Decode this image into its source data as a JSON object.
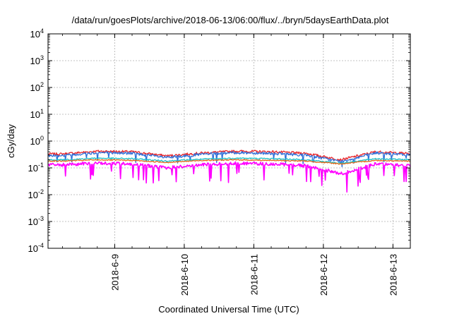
{
  "chart_data": {
    "type": "line",
    "title": "/data/run/goesPlots/archive/2018-06-13/06:00/flux/../bryn/5daysEarthData.plot",
    "xlabel": "Coordinated Universal Time (UTC)",
    "ylabel": "cGy/day",
    "yscale": "log",
    "ylim": [
      0.0001,
      10000
    ],
    "y_ticks": [
      {
        "value": 0.0001,
        "base": "10",
        "exp": "-4"
      },
      {
        "value": 0.001,
        "base": "10",
        "exp": "-3"
      },
      {
        "value": 0.01,
        "base": "10",
        "exp": "-2"
      },
      {
        "value": 0.1,
        "base": "10",
        "exp": "-1"
      },
      {
        "value": 1,
        "base": "10",
        "exp": "0"
      },
      {
        "value": 10,
        "base": "10",
        "exp": "1"
      },
      {
        "value": 100,
        "base": "10",
        "exp": "2"
      },
      {
        "value": 1000,
        "base": "10",
        "exp": "3"
      },
      {
        "value": 10000,
        "base": "10",
        "exp": "4"
      }
    ],
    "xlim": [
      "2018-06-08T01:00",
      "2018-06-13T06:00"
    ],
    "x_ticks": [
      "2018-6-9",
      "2018-6-10",
      "2018-6-11",
      "2018-6-12",
      "2018-6-13"
    ],
    "grid": true,
    "legend": "none",
    "series": [
      {
        "color": "#e8252a",
        "x": [
          "2018-06-08T06:00",
          "2018-06-08T18:00",
          "2018-06-09T06:00",
          "2018-06-09T18:00",
          "2018-06-10T06:00",
          "2018-06-10T18:00",
          "2018-06-11T06:00",
          "2018-06-11T18:00",
          "2018-06-12T06:00",
          "2018-06-12T18:00",
          "2018-06-13T06:00"
        ],
        "y": [
          0.33,
          0.42,
          0.4,
          0.28,
          0.36,
          0.42,
          0.4,
          0.35,
          0.2,
          0.4,
          0.34
        ]
      },
      {
        "color": "#2f6fd8",
        "x": [
          "2018-06-08T06:00",
          "2018-06-08T18:00",
          "2018-06-09T06:00",
          "2018-06-09T18:00",
          "2018-06-10T06:00",
          "2018-06-10T18:00",
          "2018-06-11T06:00",
          "2018-06-11T18:00",
          "2018-06-12T06:00",
          "2018-06-12T18:00",
          "2018-06-13T06:00"
        ],
        "y": [
          0.29,
          0.37,
          0.35,
          0.24,
          0.32,
          0.37,
          0.35,
          0.3,
          0.17,
          0.36,
          0.3
        ]
      },
      {
        "color": "#20c0c8",
        "x": [
          "2018-06-08T06:00",
          "2018-06-08T18:00",
          "2018-06-09T06:00",
          "2018-06-09T18:00",
          "2018-06-10T06:00",
          "2018-06-10T18:00",
          "2018-06-11T06:00",
          "2018-06-11T18:00",
          "2018-06-12T06:00",
          "2018-06-12T18:00",
          "2018-06-13T06:00"
        ],
        "y": [
          0.2,
          0.23,
          0.22,
          0.18,
          0.21,
          0.23,
          0.22,
          0.2,
          0.15,
          0.22,
          0.2
        ]
      },
      {
        "color": "#e06a1a",
        "x": [
          "2018-06-08T06:00",
          "2018-06-08T18:00",
          "2018-06-09T06:00",
          "2018-06-09T18:00",
          "2018-06-10T06:00",
          "2018-06-10T18:00",
          "2018-06-11T06:00",
          "2018-06-11T18:00",
          "2018-06-12T06:00",
          "2018-06-12T18:00",
          "2018-06-13T06:00"
        ],
        "y": [
          0.18,
          0.2,
          0.19,
          0.16,
          0.19,
          0.2,
          0.19,
          0.18,
          0.14,
          0.19,
          0.18
        ]
      },
      {
        "color": "#ff00ff",
        "x": [
          "2018-06-08T06:00",
          "2018-06-08T18:00",
          "2018-06-09T06:00",
          "2018-06-09T18:00",
          "2018-06-10T06:00",
          "2018-06-10T18:00",
          "2018-06-11T06:00",
          "2018-06-11T18:00",
          "2018-06-12T06:00",
          "2018-06-12T18:00",
          "2018-06-13T06:00"
        ],
        "y": [
          0.13,
          0.15,
          0.14,
          0.1,
          0.13,
          0.15,
          0.14,
          0.12,
          0.06,
          0.14,
          0.12
        ]
      }
    ]
  }
}
